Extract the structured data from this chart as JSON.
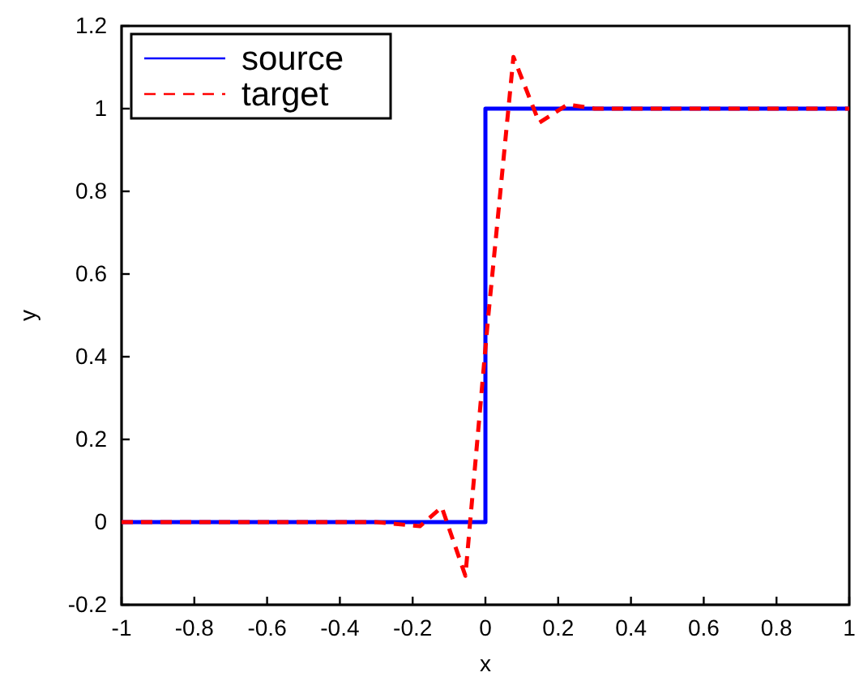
{
  "chart_data": {
    "type": "line",
    "xlabel": "x",
    "ylabel": "y",
    "xlim": [
      -1,
      1
    ],
    "ylim": [
      -0.2,
      1.2
    ],
    "xticks": [
      -1,
      -0.8,
      -0.6,
      -0.4,
      -0.2,
      0,
      0.2,
      0.4,
      0.6,
      0.8,
      1
    ],
    "yticks": [
      -0.2,
      0,
      0.2,
      0.4,
      0.6,
      0.8,
      1,
      1.2
    ],
    "grid": false,
    "legend": "top left",
    "marker": "none",
    "series": [
      {
        "name": "source",
        "color": "#0000ff",
        "line_style": "solid",
        "x": [
          -1,
          0,
          0,
          1
        ],
        "values": [
          0,
          0,
          1,
          1
        ]
      },
      {
        "name": "target",
        "color": "#ff0000",
        "line_style": "dashed",
        "x": [
          -1,
          -0.3,
          -0.18,
          -0.12,
          -0.055,
          0.007,
          0.077,
          0.148,
          0.226,
          0.3,
          1
        ],
        "values": [
          0,
          0,
          -0.01,
          0.036,
          -0.13,
          0.49,
          1.125,
          0.966,
          1.01,
          1,
          1
        ]
      }
    ]
  }
}
